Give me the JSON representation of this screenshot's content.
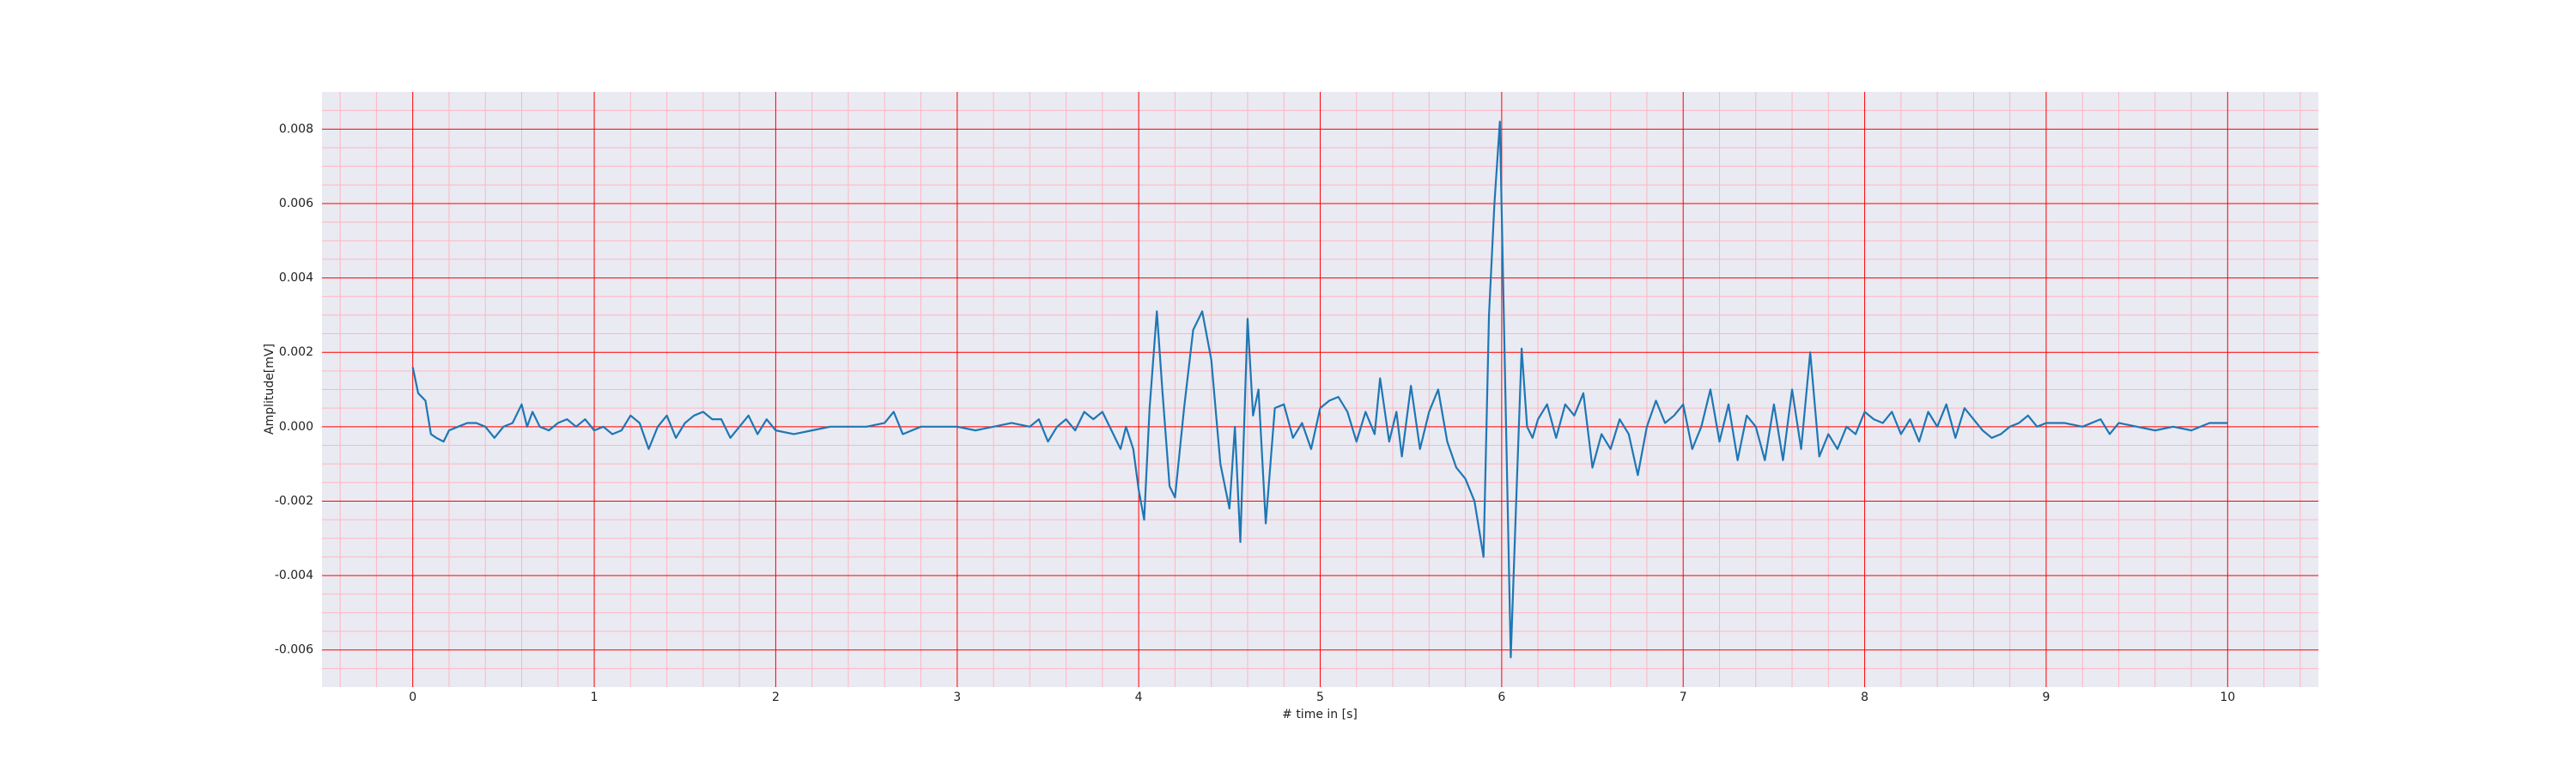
{
  "chart_data": {
    "type": "line",
    "xlabel": "# time in [s]",
    "ylabel": "Amplitude[mV]",
    "x": [
      0,
      0.03,
      0.07,
      0.1,
      0.13,
      0.17,
      0.2,
      0.25,
      0.3,
      0.35,
      0.4,
      0.45,
      0.5,
      0.55,
      0.6,
      0.63,
      0.66,
      0.7,
      0.75,
      0.8,
      0.85,
      0.9,
      0.95,
      1.0,
      1.05,
      1.1,
      1.15,
      1.2,
      1.25,
      1.3,
      1.35,
      1.4,
      1.45,
      1.5,
      1.55,
      1.6,
      1.65,
      1.7,
      1.75,
      1.8,
      1.85,
      1.9,
      1.95,
      2.0,
      2.1,
      2.2,
      2.3,
      2.5,
      2.6,
      2.65,
      2.7,
      2.8,
      2.9,
      3.0,
      3.1,
      3.2,
      3.3,
      3.4,
      3.45,
      3.5,
      3.55,
      3.6,
      3.65,
      3.7,
      3.75,
      3.8,
      3.85,
      3.9,
      3.93,
      3.97,
      4.0,
      4.03,
      4.06,
      4.1,
      4.13,
      4.17,
      4.2,
      4.25,
      4.3,
      4.35,
      4.4,
      4.45,
      4.5,
      4.53,
      4.56,
      4.6,
      4.63,
      4.66,
      4.7,
      4.75,
      4.8,
      4.85,
      4.9,
      4.95,
      5.0,
      5.05,
      5.1,
      5.15,
      5.2,
      5.25,
      5.3,
      5.33,
      5.38,
      5.42,
      5.45,
      5.5,
      5.55,
      5.6,
      5.65,
      5.7,
      5.75,
      5.8,
      5.85,
      5.9,
      5.93,
      5.96,
      5.99,
      6.02,
      6.05,
      6.08,
      6.11,
      6.14,
      6.17,
      6.2,
      6.25,
      6.3,
      6.35,
      6.4,
      6.45,
      6.5,
      6.55,
      6.6,
      6.65,
      6.7,
      6.75,
      6.8,
      6.85,
      6.9,
      6.95,
      7.0,
      7.05,
      7.1,
      7.15,
      7.2,
      7.25,
      7.3,
      7.35,
      7.4,
      7.45,
      7.5,
      7.55,
      7.6,
      7.65,
      7.7,
      7.75,
      7.8,
      7.85,
      7.9,
      7.95,
      8.0,
      8.05,
      8.1,
      8.15,
      8.2,
      8.25,
      8.3,
      8.35,
      8.4,
      8.45,
      8.5,
      8.55,
      8.6,
      8.65,
      8.7,
      8.75,
      8.8,
      8.85,
      8.9,
      8.95,
      9.0,
      9.1,
      9.2,
      9.3,
      9.35,
      9.4,
      9.5,
      9.6,
      9.7,
      9.8,
      9.9,
      10.0
    ],
    "series": [
      {
        "color": "#1f77b4",
        "values": [
          0.0016,
          0.0009,
          0.0007,
          -0.0002,
          -0.0003,
          -0.0004,
          -0.0001,
          0.0,
          0.0001,
          0.0001,
          0.0,
          -0.0003,
          0.0,
          0.0001,
          0.0006,
          0.0,
          0.0004,
          0.0,
          -0.0001,
          0.0001,
          0.0002,
          0.0,
          0.0002,
          -0.0001,
          0.0,
          -0.0002,
          -0.0001,
          0.0003,
          0.0001,
          -0.0006,
          0.0,
          0.0003,
          -0.0003,
          0.0001,
          0.0003,
          0.0004,
          0.0002,
          0.0002,
          -0.0003,
          0.0,
          0.0003,
          -0.0002,
          0.0002,
          -0.0001,
          -0.0002,
          -0.0001,
          0.0,
          0.0,
          0.0001,
          0.0004,
          -0.0002,
          0.0,
          0.0,
          0.0,
          -0.0001,
          0.0,
          0.0001,
          0.0,
          0.0002,
          -0.0004,
          0.0,
          0.0002,
          -0.0001,
          0.0004,
          0.0002,
          0.0004,
          -0.0001,
          -0.0006,
          0.0,
          -0.0006,
          -0.0017,
          -0.0025,
          0.0005,
          0.0031,
          0.001,
          -0.0016,
          -0.0019,
          0.0005,
          0.0026,
          0.0031,
          0.0018,
          -0.001,
          -0.0022,
          0.0,
          -0.0031,
          0.0029,
          0.0003,
          0.001,
          -0.0026,
          0.0005,
          0.0006,
          -0.0003,
          0.0001,
          -0.0006,
          0.0005,
          0.0007,
          0.0008,
          0.0004,
          -0.0004,
          0.0004,
          -0.0002,
          0.0013,
          -0.0004,
          0.0004,
          -0.0008,
          0.0011,
          -0.0006,
          0.0004,
          0.001,
          -0.0004,
          -0.0011,
          -0.0014,
          -0.002,
          -0.0035,
          0.003,
          0.006,
          0.0082,
          0.001,
          -0.0062,
          -0.002,
          0.0021,
          0.0,
          -0.0003,
          0.0002,
          0.0006,
          -0.0003,
          0.0006,
          0.0003,
          0.0009,
          -0.0011,
          -0.0002,
          -0.0006,
          0.0002,
          -0.0002,
          -0.0013,
          0.0,
          0.0007,
          0.0001,
          0.0003,
          0.0006,
          -0.0006,
          0.0,
          0.001,
          -0.0004,
          0.0006,
          -0.0009,
          0.0003,
          0.0,
          -0.0009,
          0.0006,
          -0.0009,
          0.001,
          -0.0006,
          0.002,
          -0.0008,
          -0.0002,
          -0.0006,
          0.0,
          -0.0002,
          0.0004,
          0.0002,
          0.0001,
          0.0004,
          -0.0002,
          0.0002,
          -0.0004,
          0.0004,
          0.0,
          0.0006,
          -0.0003,
          0.0005,
          0.0002,
          -0.0001,
          -0.0003,
          -0.0002,
          0.0,
          0.0001,
          0.0003,
          0.0,
          0.0001,
          0.0001,
          0.0,
          0.0002,
          -0.0002,
          0.0001,
          0.0,
          -0.0001,
          0.0,
          -0.0001,
          0.0001,
          0.0001
        ]
      }
    ],
    "xlim": [
      -0.5,
      10.5
    ],
    "ylim": [
      -0.007,
      0.009
    ],
    "xticks": [
      0,
      1,
      2,
      3,
      4,
      5,
      6,
      7,
      8,
      9,
      10
    ],
    "yticks": [
      -0.006,
      -0.004,
      -0.002,
      {
        "value": 0,
        "label": "0.000"
      },
      0.002,
      0.004,
      0.006,
      0.008
    ],
    "minor_xticks": [
      -0.4,
      -0.2,
      0.2,
      0.4,
      0.6,
      0.8,
      1.2,
      1.4,
      1.6,
      1.8,
      2.2,
      2.4,
      2.6,
      2.8,
      3.2,
      3.4,
      3.6,
      3.8,
      4.2,
      4.4,
      4.6,
      4.8,
      5.2,
      5.4,
      5.6,
      5.8,
      6.2,
      6.4,
      6.6,
      6.8,
      7.2,
      7.4,
      7.6,
      7.8,
      8.2,
      8.4,
      8.6,
      8.8,
      9.2,
      9.4,
      9.6,
      9.8,
      10.2,
      10.4
    ],
    "minor_yticks": [
      -0.0065,
      -0.0055,
      -0.005,
      -0.0045,
      -0.0035,
      -0.003,
      -0.0025,
      -0.0015,
      -0.001,
      -0.0005,
      0.0005,
      0.001,
      0.0015,
      0.0025,
      0.003,
      0.0035,
      0.0045,
      0.005,
      0.0055,
      0.0065,
      0.007,
      0.0075,
      0.0085
    ],
    "grid": true,
    "grid_color": "#ff0000",
    "minor_grid_color": "#ffb6c1",
    "background": "#eaeaf2"
  }
}
